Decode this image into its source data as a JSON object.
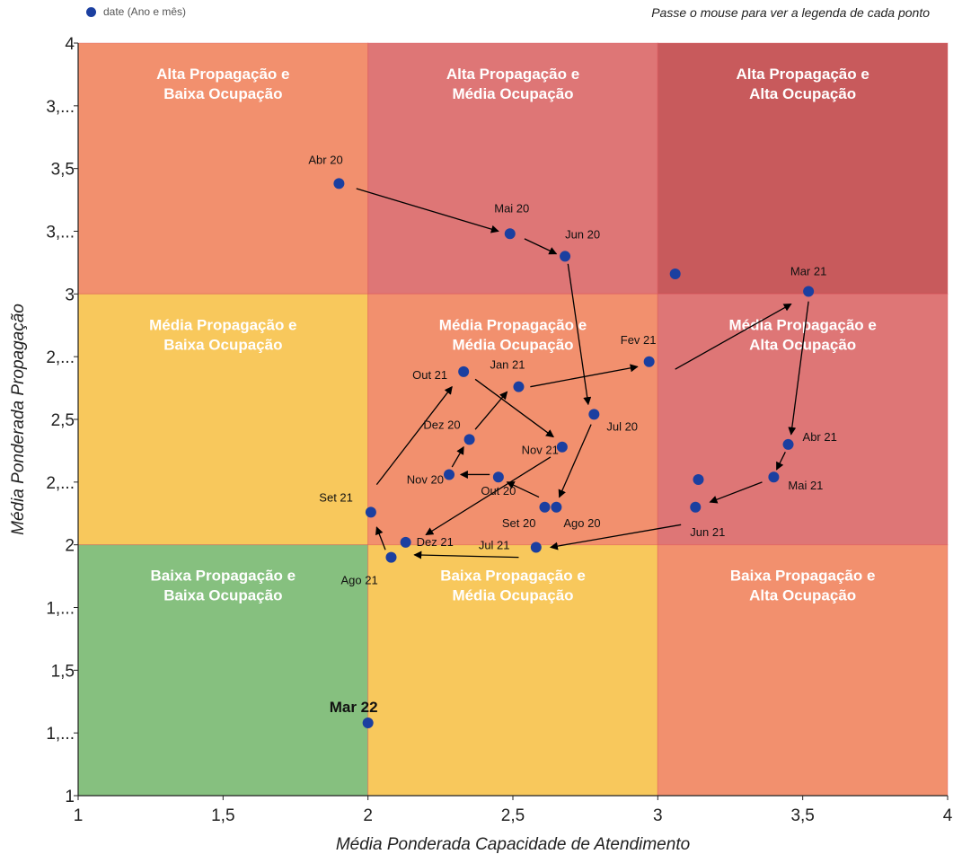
{
  "header": {
    "legend_label": "date (Ano e mês)",
    "hint": "Passe o mouse para ver a legenda de cada ponto"
  },
  "colors": {
    "point": "#1b3fa0",
    "green": "#86c07f",
    "yellow": "#f8c85c",
    "orange": "#f2906e",
    "pink": "#de7676",
    "red": "#c85a5c"
  },
  "chart_data": {
    "type": "scatter",
    "xlabel": "Média Ponderada Capacidade de Atendimento",
    "ylabel": "Média Ponderada Propagação",
    "xlim": [
      1,
      4
    ],
    "ylim": [
      1,
      4
    ],
    "x_ticks": [
      {
        "value": 1,
        "label": "1"
      },
      {
        "value": 1.5,
        "label": "1,5"
      },
      {
        "value": 2,
        "label": "2"
      },
      {
        "value": 2.5,
        "label": "2,5"
      },
      {
        "value": 3,
        "label": "3"
      },
      {
        "value": 3.5,
        "label": "3,5"
      },
      {
        "value": 4,
        "label": "4"
      }
    ],
    "y_ticks": [
      {
        "value": 1,
        "label": "1"
      },
      {
        "value": 1.25,
        "label": "1,..."
      },
      {
        "value": 1.5,
        "label": "1,5"
      },
      {
        "value": 1.75,
        "label": "1,..."
      },
      {
        "value": 2,
        "label": "2"
      },
      {
        "value": 2.25,
        "label": "2,..."
      },
      {
        "value": 2.5,
        "label": "2,5"
      },
      {
        "value": 2.75,
        "label": "2,..."
      },
      {
        "value": 3,
        "label": "3"
      },
      {
        "value": 3.25,
        "label": "3,..."
      },
      {
        "value": 3.5,
        "label": "3,5"
      },
      {
        "value": 3.75,
        "label": "3,..."
      },
      {
        "value": 4,
        "label": "4"
      }
    ],
    "quadrants": [
      {
        "x": [
          1,
          2
        ],
        "y": [
          3,
          4
        ],
        "color": "orange",
        "line1": "Alta Propagação e",
        "line2": "Baixa Ocupação"
      },
      {
        "x": [
          2,
          3
        ],
        "y": [
          3,
          4
        ],
        "color": "pink",
        "line1": "Alta Propagação e",
        "line2": "Média Ocupação"
      },
      {
        "x": [
          3,
          4
        ],
        "y": [
          3,
          4
        ],
        "color": "red",
        "line1": "Alta Propagação e",
        "line2": "Alta Ocupação"
      },
      {
        "x": [
          1,
          2
        ],
        "y": [
          2,
          3
        ],
        "color": "yellow",
        "line1": "Média Propagação e",
        "line2": "Baixa Ocupação"
      },
      {
        "x": [
          2,
          3
        ],
        "y": [
          2,
          3
        ],
        "color": "orange",
        "line1": "Média Propagação e",
        "line2": "Média Ocupação"
      },
      {
        "x": [
          3,
          4
        ],
        "y": [
          2,
          3
        ],
        "color": "pink",
        "line1": "Média Propagação e",
        "line2": "Alta Ocupação"
      },
      {
        "x": [
          1,
          2
        ],
        "y": [
          1,
          2
        ],
        "color": "green",
        "line1": "Baixa Propagação e",
        "line2": "Baixa Ocupação"
      },
      {
        "x": [
          2,
          3
        ],
        "y": [
          1,
          2
        ],
        "color": "yellow",
        "line1": "Baixa Propagação e",
        "line2": "Média Ocupação"
      },
      {
        "x": [
          3,
          4
        ],
        "y": [
          1,
          2
        ],
        "color": "orange",
        "line1": "Baixa Propagação e",
        "line2": "Alta Ocupação"
      }
    ],
    "points": [
      {
        "label": "Abr 20",
        "x": 1.9,
        "y": 3.44
      },
      {
        "label": "Mai 20",
        "x": 2.49,
        "y": 3.24
      },
      {
        "label": "Jun 20",
        "x": 2.68,
        "y": 3.15
      },
      {
        "label": "Jul 20",
        "x": 2.78,
        "y": 2.52
      },
      {
        "label": "Ago 20",
        "x": 2.65,
        "y": 2.15
      },
      {
        "label": "Set 20",
        "x": 2.61,
        "y": 2.15
      },
      {
        "label": "Out 20",
        "x": 2.45,
        "y": 2.27
      },
      {
        "label": "Nov 20",
        "x": 2.28,
        "y": 2.28
      },
      {
        "label": "Dez 20",
        "x": 2.35,
        "y": 2.42
      },
      {
        "label": "Jan 21",
        "x": 2.52,
        "y": 2.63
      },
      {
        "label": "Fev 21",
        "x": 2.97,
        "y": 2.73
      },
      {
        "label": "Mar 21",
        "x": 3.52,
        "y": 3.01
      },
      {
        "label": "",
        "x": 3.06,
        "y": 3.08
      },
      {
        "label": "Abr 21",
        "x": 3.45,
        "y": 2.4
      },
      {
        "label": "Mai 21",
        "x": 3.4,
        "y": 2.27
      },
      {
        "label": "",
        "x": 3.14,
        "y": 2.26
      },
      {
        "label": "Jun 21",
        "x": 3.13,
        "y": 2.15
      },
      {
        "label": "Jul 21",
        "x": 2.58,
        "y": 1.99
      },
      {
        "label": "Ago 21",
        "x": 2.08,
        "y": 1.95
      },
      {
        "label": "Set 21",
        "x": 2.01,
        "y": 2.13
      },
      {
        "label": "Out 21",
        "x": 2.33,
        "y": 2.69
      },
      {
        "label": "Nov 21",
        "x": 2.67,
        "y": 2.39
      },
      {
        "label": "Dez 21",
        "x": 2.13,
        "y": 2.01
      },
      {
        "label": "Mar 22",
        "x": 2.0,
        "y": 1.29
      }
    ],
    "arrows": [
      {
        "from": [
          1.96,
          3.42
        ],
        "to": [
          2.45,
          3.25
        ]
      },
      {
        "from": [
          2.54,
          3.22
        ],
        "to": [
          2.65,
          3.16
        ]
      },
      {
        "from": [
          2.69,
          3.12
        ],
        "to": [
          2.76,
          2.56
        ]
      },
      {
        "from": [
          2.77,
          2.48
        ],
        "to": [
          2.66,
          2.19
        ]
      },
      {
        "from": [
          2.59,
          2.19
        ],
        "to": [
          2.48,
          2.25
        ]
      },
      {
        "from": [
          2.42,
          2.28
        ],
        "to": [
          2.32,
          2.28
        ]
      },
      {
        "from": [
          2.29,
          2.31
        ],
        "to": [
          2.33,
          2.39
        ]
      },
      {
        "from": [
          2.37,
          2.46
        ],
        "to": [
          2.48,
          2.61
        ]
      },
      {
        "from": [
          2.56,
          2.63
        ],
        "to": [
          2.93,
          2.71
        ]
      },
      {
        "from": [
          3.06,
          2.7
        ],
        "to": [
          3.46,
          2.96
        ]
      },
      {
        "from": [
          3.52,
          2.97
        ],
        "to": [
          3.46,
          2.44
        ]
      },
      {
        "from": [
          3.44,
          2.37
        ],
        "to": [
          3.41,
          2.3
        ]
      },
      {
        "from": [
          3.36,
          2.25
        ],
        "to": [
          3.18,
          2.17
        ]
      },
      {
        "from": [
          3.08,
          2.08
        ],
        "to": [
          2.63,
          1.99
        ]
      },
      {
        "from": [
          2.52,
          1.95
        ],
        "to": [
          2.16,
          1.96
        ]
      },
      {
        "from": [
          2.06,
          1.98
        ],
        "to": [
          2.03,
          2.07
        ]
      },
      {
        "from": [
          2.03,
          2.24
        ],
        "to": [
          2.29,
          2.63
        ]
      },
      {
        "from": [
          2.37,
          2.66
        ],
        "to": [
          2.64,
          2.43
        ]
      },
      {
        "from": [
          2.63,
          2.35
        ],
        "to": [
          2.2,
          2.04
        ]
      }
    ]
  }
}
